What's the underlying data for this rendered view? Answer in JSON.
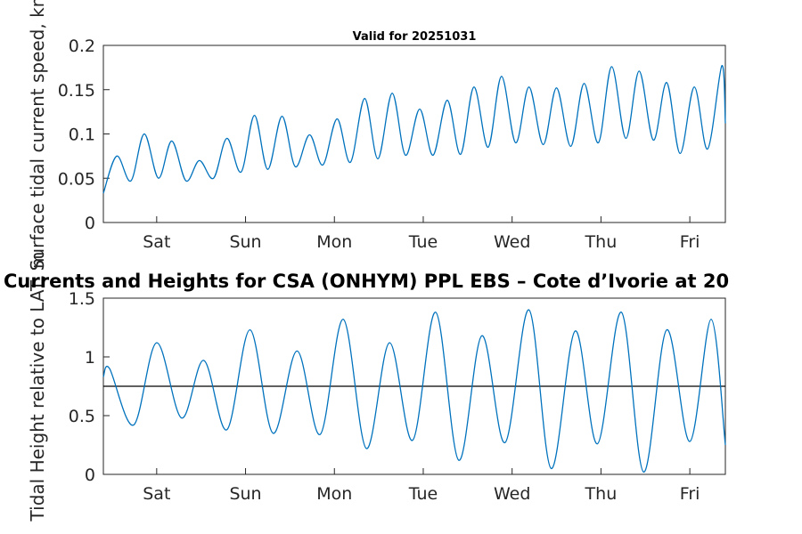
{
  "chart_data": [
    {
      "type": "line",
      "title": "Valid for 20251031",
      "xlabel": "",
      "ylabel": "Surface tidal current speed, kn",
      "xlim": [
        0,
        7
      ],
      "ylim": [
        0,
        0.2
      ],
      "yticks": [
        0,
        0.05,
        0.1,
        0.15,
        0.2
      ],
      "ytick_labels": [
        "0",
        "0.05",
        "0.1",
        "0.15",
        "0.2"
      ],
      "xticks": [
        0.6,
        1.6,
        2.6,
        3.6,
        4.6,
        5.6,
        6.6
      ],
      "xtick_labels": [
        "Sat",
        "Sun",
        "Mon",
        "Tue",
        "Wed",
        "Thu",
        "Fri"
      ],
      "series": [
        {
          "name": "Surface tidal current speed",
          "x": [
            0.0,
            0.15,
            0.31,
            0.46,
            0.62,
            0.77,
            0.93,
            1.08,
            1.24,
            1.39,
            1.55,
            1.7,
            1.85,
            2.01,
            2.16,
            2.32,
            2.47,
            2.63,
            2.78,
            2.94,
            3.09,
            3.25,
            3.4,
            3.56,
            3.71,
            3.87,
            4.02,
            4.17,
            4.33,
            4.48,
            4.64,
            4.79,
            4.95,
            5.1,
            5.26,
            5.41,
            5.57,
            5.72,
            5.88,
            6.03,
            6.19,
            6.34,
            6.49,
            6.65,
            6.8,
            6.96,
            7.0
          ],
          "values": [
            0.033,
            0.075,
            0.047,
            0.1,
            0.05,
            0.092,
            0.047,
            0.07,
            0.05,
            0.095,
            0.057,
            0.121,
            0.06,
            0.12,
            0.063,
            0.099,
            0.065,
            0.117,
            0.068,
            0.14,
            0.072,
            0.146,
            0.076,
            0.128,
            0.076,
            0.138,
            0.077,
            0.153,
            0.085,
            0.165,
            0.09,
            0.153,
            0.088,
            0.152,
            0.086,
            0.157,
            0.09,
            0.176,
            0.095,
            0.171,
            0.093,
            0.158,
            0.078,
            0.153,
            0.083,
            0.177,
            0.112
          ]
        }
      ]
    },
    {
      "type": "line",
      "title": "Currents and Heights for CSA (ONHYM) PPL EBS  – Cote d’Ivorie at 20",
      "xlabel": "",
      "ylabel": "Tidal Height relative to LAT, m",
      "xlim": [
        0,
        7
      ],
      "ylim": [
        0,
        1.5
      ],
      "yticks": [
        0,
        0.5,
        1,
        1.5
      ],
      "ytick_labels": [
        "0",
        "0.5",
        "1",
        "1.5"
      ],
      "xticks": [
        0.6,
        1.6,
        2.6,
        3.6,
        4.6,
        5.6,
        6.6
      ],
      "xtick_labels": [
        "Sat",
        "Sun",
        "Mon",
        "Tue",
        "Wed",
        "Thu",
        "Fri"
      ],
      "reference_line": 0.75,
      "series": [
        {
          "name": "Tidal height",
          "x": [
            0.0,
            0.07,
            0.34,
            0.6,
            0.88,
            1.13,
            1.39,
            1.65,
            1.91,
            2.18,
            2.44,
            2.7,
            2.96,
            3.22,
            3.48,
            3.74,
            4.0,
            4.26,
            4.52,
            4.79,
            5.04,
            5.31,
            5.56,
            5.83,
            6.08,
            6.34,
            6.6,
            6.84,
            7.0
          ],
          "values": [
            0.83,
            0.9,
            0.42,
            1.12,
            0.48,
            0.97,
            0.38,
            1.23,
            0.35,
            1.05,
            0.34,
            1.32,
            0.22,
            1.12,
            0.29,
            1.38,
            0.12,
            1.18,
            0.27,
            1.4,
            0.05,
            1.22,
            0.26,
            1.38,
            0.02,
            1.23,
            0.28,
            1.32,
            0.25
          ]
        }
      ]
    }
  ]
}
